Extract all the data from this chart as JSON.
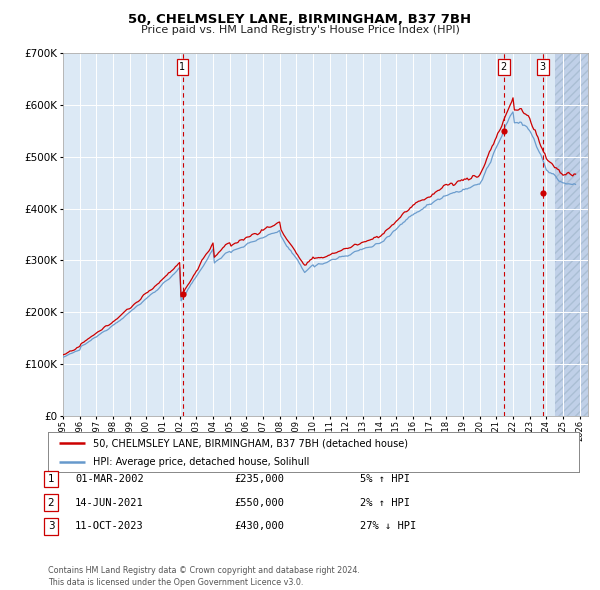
{
  "title": "50, CHELMSLEY LANE, BIRMINGHAM, B37 7BH",
  "subtitle": "Price paid vs. HM Land Registry's House Price Index (HPI)",
  "legend_line1": "50, CHELMSLEY LANE, BIRMINGHAM, B37 7BH (detached house)",
  "legend_line2": "HPI: Average price, detached house, Solihull",
  "footer": "Contains HM Land Registry data © Crown copyright and database right 2024.\nThis data is licensed under the Open Government Licence v3.0.",
  "transactions": [
    {
      "num": 1,
      "date": "01-MAR-2002",
      "price": 235000,
      "pct": "5%",
      "dir": "↑"
    },
    {
      "num": 2,
      "date": "14-JUN-2021",
      "price": 550000,
      "pct": "2%",
      "dir": "↑"
    },
    {
      "num": 3,
      "date": "11-OCT-2023",
      "price": 430000,
      "pct": "27%",
      "dir": "↓"
    }
  ],
  "transaction_years": [
    2002.17,
    2021.45,
    2023.79
  ],
  "sale_prices": [
    235000,
    550000,
    430000
  ],
  "color_red": "#cc0000",
  "color_blue": "#6699cc",
  "bg_color": "#dce9f5",
  "hatch_color": "#c0d0e8",
  "grid_color": "#ffffff",
  "ylim": [
    0,
    700000
  ],
  "xlim_start": 1995.0,
  "xlim_end": 2026.5,
  "hatch_start": 2024.5
}
